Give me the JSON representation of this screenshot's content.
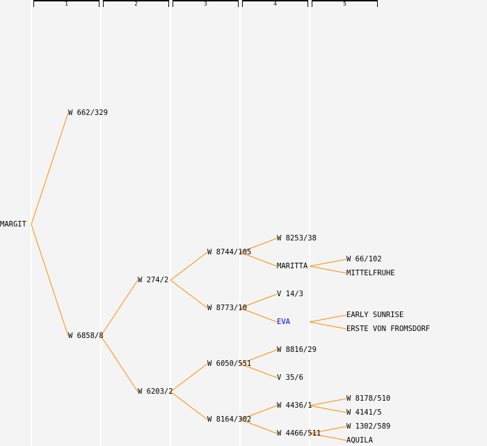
{
  "generations": [
    "1",
    "2",
    "3",
    "4",
    "5"
  ],
  "line_color": "#ff8c00",
  "highlight_color": "#0000ff",
  "tree": {
    "name": "MARGIT",
    "parents": [
      {
        "name": "W 662/329",
        "parents": []
      },
      {
        "name": "W 6858/8",
        "parents": [
          {
            "name": "W 274/2",
            "parents": [
              {
                "name": "W 8744/105",
                "parents": [
                  {
                    "name": "W 8253/38",
                    "parents": []
                  },
                  {
                    "name": "MARITTA",
                    "parents": [
                      {
                        "name": "W 66/102",
                        "parents": []
                      },
                      {
                        "name": "MITTELFRUHE",
                        "parents": []
                      }
                    ]
                  }
                ]
              },
              {
                "name": "W 8773/10",
                "parents": [
                  {
                    "name": "V 14/3",
                    "parents": []
                  },
                  {
                    "name": "EVA",
                    "highlight": true,
                    "parents": [
                      {
                        "name": "EARLY SUNRISE",
                        "parents": []
                      },
                      {
                        "name": "ERSTE VON FROMSDORF",
                        "parents": []
                      }
                    ]
                  }
                ]
              }
            ]
          },
          {
            "name": "W 6203/2",
            "parents": [
              {
                "name": "W 6050/551",
                "parents": [
                  {
                    "name": "W 8816/29",
                    "parents": []
                  },
                  {
                    "name": "V 35/6",
                    "parents": []
                  }
                ]
              },
              {
                "name": "W 8164/302",
                "parents": [
                  {
                    "name": "W 4436/1",
                    "parents": [
                      {
                        "name": "W 8178/510",
                        "parents": []
                      },
                      {
                        "name": "W 4141/5",
                        "parents": []
                      }
                    ]
                  },
                  {
                    "name": "W 4466/511",
                    "parents": [
                      {
                        "name": "W 1302/589",
                        "parents": []
                      },
                      {
                        "name": "AQUILA",
                        "parents": []
                      }
                    ]
                  }
                ]
              }
            ]
          }
        ]
      }
    ]
  }
}
